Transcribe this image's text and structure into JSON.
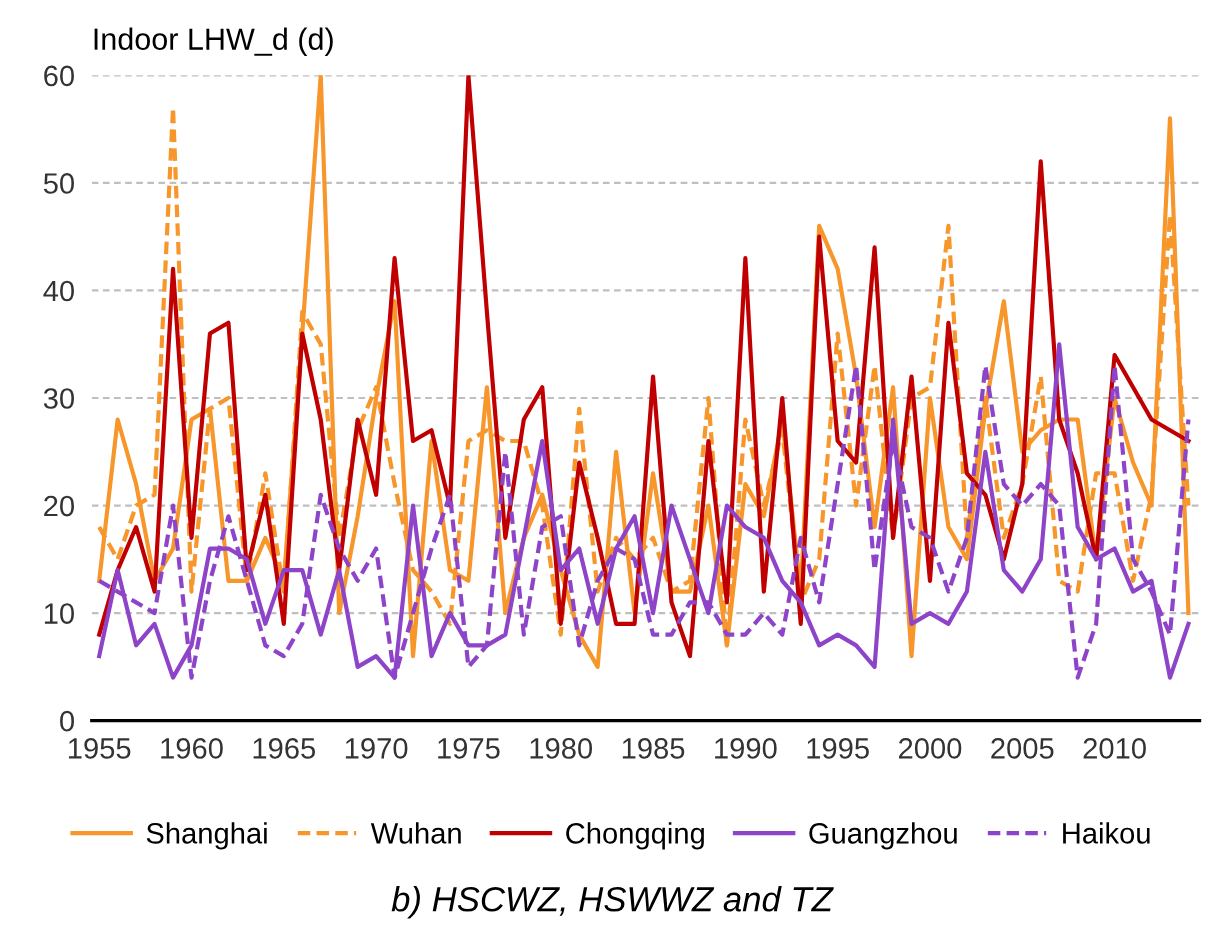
{
  "chart_data": {
    "type": "line",
    "ylabel": "Indoor LHW_d (d)",
    "annotations": [
      "b) HSCWZ, HSWWZ and TZ"
    ],
    "x": [
      1955,
      1956,
      1957,
      1958,
      1959,
      1960,
      1961,
      1962,
      1963,
      1964,
      1965,
      1966,
      1967,
      1968,
      1969,
      1970,
      1971,
      1972,
      1973,
      1974,
      1975,
      1976,
      1977,
      1978,
      1979,
      1980,
      1981,
      1982,
      1983,
      1984,
      1985,
      1986,
      1987,
      1988,
      1989,
      1990,
      1991,
      1992,
      1993,
      1994,
      1995,
      1996,
      1997,
      1998,
      1999,
      2000,
      2001,
      2002,
      2003,
      2004,
      2005,
      2006,
      2007,
      2008,
      2009,
      2010,
      2011,
      2012,
      2013,
      2014
    ],
    "series": [
      {
        "name": "Shanghai",
        "color": "#f7962b",
        "line_style": "solid",
        "values": [
          13,
          28,
          22,
          13,
          16,
          28,
          29,
          13,
          13,
          17,
          13,
          36,
          60,
          10,
          19,
          30,
          39,
          6,
          26,
          14,
          13,
          31,
          10,
          17,
          21,
          14,
          8,
          5,
          25,
          10,
          23,
          12,
          12,
          20,
          7,
          22,
          19,
          28,
          12,
          46,
          42,
          32,
          18,
          31,
          6,
          30,
          18,
          15,
          29,
          39,
          25,
          27,
          28,
          28,
          15,
          30,
          24,
          20,
          56,
          10
        ]
      },
      {
        "name": "Wuhan",
        "color": "#f7962b",
        "line_style": "dashed",
        "values": [
          18,
          15,
          20,
          21,
          57,
          12,
          29,
          30,
          13,
          23,
          12,
          38,
          35,
          17,
          27,
          31,
          22,
          14,
          12,
          9,
          26,
          27,
          26,
          26,
          20,
          8,
          29,
          12,
          17,
          15,
          17,
          12,
          13,
          30,
          7,
          28,
          20,
          27,
          11,
          15,
          36,
          20,
          33,
          17,
          30,
          31,
          46,
          17,
          30,
          17,
          22,
          32,
          13,
          12,
          23,
          23,
          13,
          21,
          47,
          20
        ]
      },
      {
        "name": "Chongqing",
        "color": "#c00000",
        "line_style": "solid",
        "values": [
          8,
          14,
          18,
          12,
          42,
          17,
          36,
          37,
          14,
          21,
          9,
          36,
          28,
          14,
          28,
          21,
          43,
          26,
          27,
          20,
          60,
          38,
          17,
          28,
          31,
          9,
          24,
          17,
          9,
          9,
          32,
          11,
          6,
          26,
          11,
          43,
          12,
          30,
          9,
          45,
          26,
          24,
          44,
          17,
          32,
          13,
          37,
          23,
          21,
          15,
          22,
          52,
          28,
          23,
          15,
          34,
          31,
          28,
          27,
          26
        ]
      },
      {
        "name": "Guangzhou",
        "color": "#8e44c8",
        "line_style": "solid",
        "values": [
          6,
          14,
          7,
          9,
          4,
          7,
          16,
          16,
          15,
          9,
          14,
          14,
          8,
          14,
          5,
          6,
          4,
          20,
          6,
          10,
          7,
          7,
          8,
          17,
          26,
          14,
          16,
          9,
          16,
          19,
          10,
          20,
          15,
          10,
          20,
          18,
          17,
          13,
          11,
          7,
          8,
          7,
          5,
          28,
          9,
          10,
          9,
          12,
          25,
          14,
          12,
          15,
          35,
          18,
          15,
          16,
          12,
          13,
          4,
          9
        ]
      },
      {
        "name": "Haikou",
        "color": "#8e44c8",
        "line_style": "dashed",
        "values": [
          13,
          12,
          11,
          10,
          20,
          4,
          13,
          19,
          13,
          7,
          6,
          9,
          21,
          16,
          13,
          16,
          4,
          10,
          16,
          21,
          5,
          7,
          25,
          8,
          18,
          19,
          7,
          13,
          16,
          15,
          8,
          8,
          11,
          11,
          8,
          8,
          10,
          8,
          17,
          11,
          22,
          33,
          14,
          26,
          18,
          17,
          12,
          17,
          33,
          22,
          20,
          22,
          20,
          4,
          9,
          33,
          15,
          12,
          8,
          28
        ]
      }
    ],
    "xlim": [
      1954.6,
      2014.6
    ],
    "xticks": [
      1955,
      1960,
      1965,
      1970,
      1975,
      1980,
      1985,
      1990,
      1995,
      2000,
      2005,
      2010
    ],
    "ylim": [
      0,
      60
    ],
    "yticks": [
      0,
      10,
      20,
      30,
      40,
      50,
      60
    ],
    "grid": "y",
    "legend": "bottom",
    "marker": "none"
  }
}
